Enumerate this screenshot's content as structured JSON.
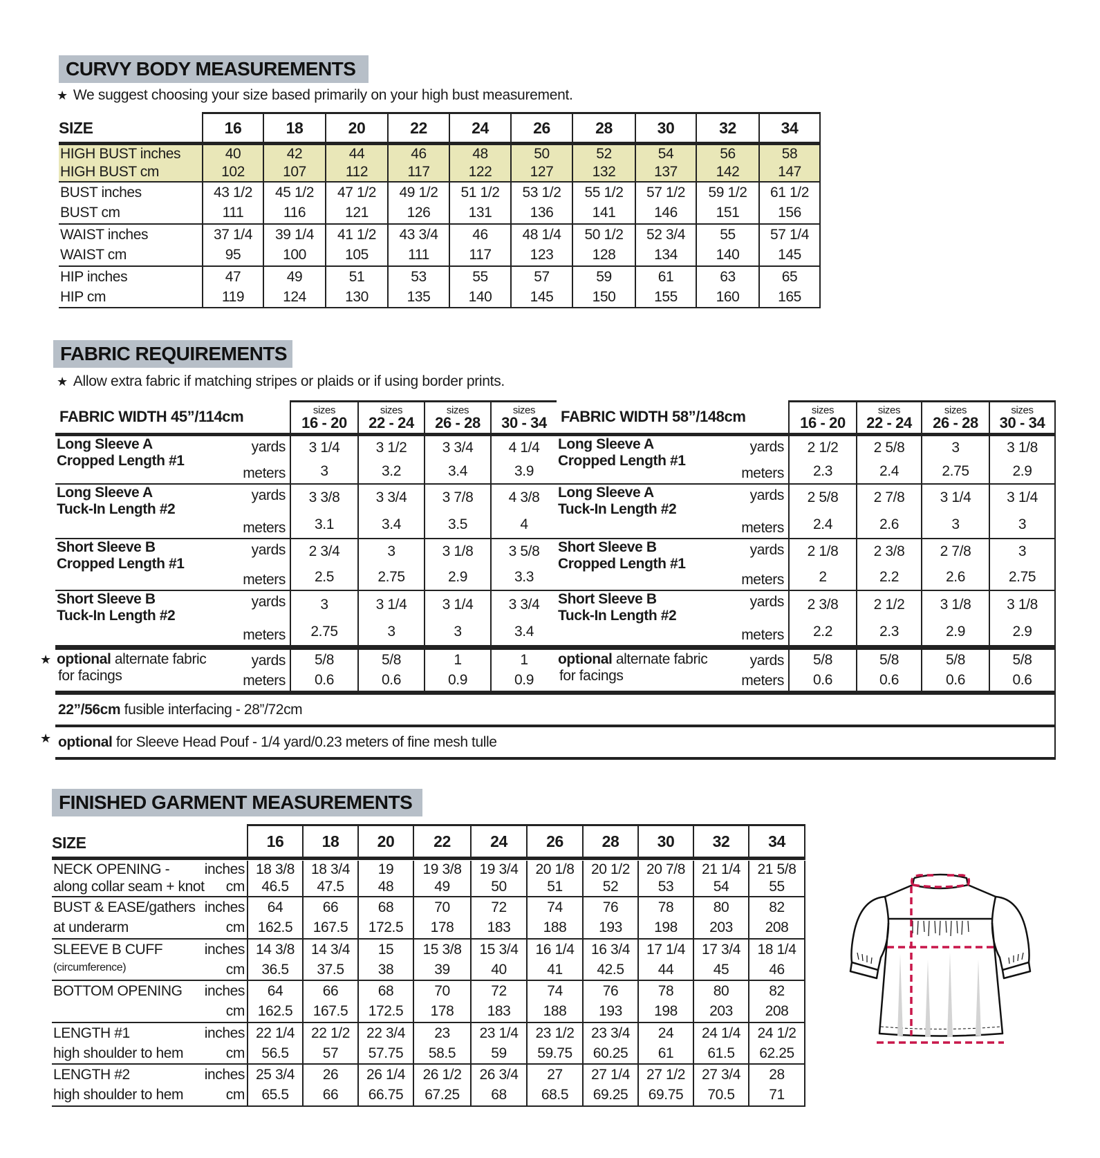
{
  "curvy": {
    "title": "CURVY BODY MEASUREMENTS",
    "note": "We suggest choosing your size based primarily on your high bust measurement.",
    "highlight_color": "#e9e7b8",
    "size_label": "SIZE",
    "sizes": [
      "16",
      "18",
      "20",
      "22",
      "24",
      "26",
      "28",
      "30",
      "32",
      "34"
    ],
    "rows": [
      {
        "labels": [
          "HIGH BUST inches",
          "HIGH BUST cm"
        ],
        "highlight": true,
        "values": [
          [
            "40",
            "102"
          ],
          [
            "42",
            "107"
          ],
          [
            "44",
            "112"
          ],
          [
            "46",
            "117"
          ],
          [
            "48",
            "122"
          ],
          [
            "50",
            "127"
          ],
          [
            "52",
            "132"
          ],
          [
            "54",
            "137"
          ],
          [
            "56",
            "142"
          ],
          [
            "58",
            "147"
          ]
        ]
      },
      {
        "labels": [
          "BUST inches",
          "BUST cm"
        ],
        "values": [
          [
            "43 1/2",
            "111"
          ],
          [
            "45 1/2",
            "116"
          ],
          [
            "47 1/2",
            "121"
          ],
          [
            "49 1/2",
            "126"
          ],
          [
            "51 1/2",
            "131"
          ],
          [
            "53 1/2",
            "136"
          ],
          [
            "55 1/2",
            "141"
          ],
          [
            "57 1/2",
            "146"
          ],
          [
            "59 1/2",
            "151"
          ],
          [
            "61 1/2",
            "156"
          ]
        ]
      },
      {
        "labels": [
          "WAIST inches",
          "WAIST cm"
        ],
        "values": [
          [
            "37 1/4",
            "95"
          ],
          [
            "39 1/4",
            "100"
          ],
          [
            "41 1/2",
            "105"
          ],
          [
            "43 3/4",
            "111"
          ],
          [
            "46",
            "117"
          ],
          [
            "48 1/4",
            "123"
          ],
          [
            "50 1/2",
            "128"
          ],
          [
            "52 3/4",
            "134"
          ],
          [
            "55",
            "140"
          ],
          [
            "57 1/4",
            "145"
          ]
        ]
      },
      {
        "labels": [
          "HIP inches",
          "HIP cm"
        ],
        "values": [
          [
            "47",
            "119"
          ],
          [
            "49",
            "124"
          ],
          [
            "51",
            "130"
          ],
          [
            "53",
            "135"
          ],
          [
            "55",
            "140"
          ],
          [
            "57",
            "145"
          ],
          [
            "59",
            "150"
          ],
          [
            "61",
            "155"
          ],
          [
            "63",
            "160"
          ],
          [
            "65",
            "165"
          ]
        ]
      }
    ]
  },
  "fabric": {
    "title": "FABRIC REQUIREMENTS",
    "note": "Allow extra fabric if matching stripes or plaids or if using border prints.",
    "left_heading": "FABRIC WIDTH 45”/114cm",
    "right_heading": "FABRIC WIDTH 58”/148cm",
    "groups": [
      {
        "top": "sizes",
        "range": "16 - 20"
      },
      {
        "top": "sizes",
        "range": "22 - 24"
      },
      {
        "top": "sizes",
        "range": "26 - 28"
      },
      {
        "top": "sizes",
        "range": "30 - 34"
      }
    ],
    "unit_yards": "yards",
    "unit_meters": "meters",
    "rows": [
      {
        "name": [
          "Long Sleeve A",
          "Cropped Length #1"
        ],
        "left": [
          [
            "3 1/4",
            "3"
          ],
          [
            "3 1/2",
            "3.2"
          ],
          [
            "3 3/4",
            "3.4"
          ],
          [
            "4 1/4",
            "3.9"
          ]
        ],
        "right": [
          [
            "2 1/2",
            "2.3"
          ],
          [
            "2 5/8",
            "2.4"
          ],
          [
            "3",
            "2.75"
          ],
          [
            "3 1/8",
            "2.9"
          ]
        ]
      },
      {
        "name": [
          "Long Sleeve A",
          "Tuck-In Length #2"
        ],
        "left": [
          [
            "3 3/8",
            "3.1"
          ],
          [
            "3 3/4",
            "3.4"
          ],
          [
            "3 7/8",
            "3.5"
          ],
          [
            "4 3/8",
            "4"
          ]
        ],
        "right": [
          [
            "2 5/8",
            "2.4"
          ],
          [
            "2 7/8",
            "2.6"
          ],
          [
            "3 1/4",
            "3"
          ],
          [
            "3 1/4",
            "3"
          ]
        ]
      },
      {
        "name": [
          "Short Sleeve B",
          "Cropped Length #1"
        ],
        "left": [
          [
            "2 3/4",
            "2.5"
          ],
          [
            "3",
            "2.75"
          ],
          [
            "3 1/8",
            "2.9"
          ],
          [
            "3 5/8",
            "3.3"
          ]
        ],
        "right": [
          [
            "2 1/8",
            "2"
          ],
          [
            "2 3/8",
            "2.2"
          ],
          [
            "2 7/8",
            "2.6"
          ],
          [
            "3",
            "2.75"
          ]
        ]
      },
      {
        "name": [
          "Short Sleeve B",
          "Tuck-In Length #2"
        ],
        "left": [
          [
            "3",
            "2.75"
          ],
          [
            "3 1/4",
            "3"
          ],
          [
            "3 1/4",
            "3"
          ],
          [
            "3 3/4",
            "3.4"
          ]
        ],
        "right": [
          [
            "2 3/8",
            "2.2"
          ],
          [
            "2 1/2",
            "2.3"
          ],
          [
            "3 1/8",
            "2.9"
          ],
          [
            "3 1/8",
            "2.9"
          ]
        ]
      }
    ],
    "optional_row": {
      "bold": "optional",
      "rest": " alternate fabric",
      "line2": "for facings",
      "left": [
        [
          "5/8",
          "0.6"
        ],
        [
          "5/8",
          "0.6"
        ],
        [
          "1",
          "0.9"
        ],
        [
          "1",
          "0.9"
        ]
      ],
      "right": [
        [
          "5/8",
          "0.6"
        ],
        [
          "5/8",
          "0.6"
        ],
        [
          "5/8",
          "0.6"
        ],
        [
          "5/8",
          "0.6"
        ]
      ]
    },
    "interfacing": {
      "bold": "22”/56cm",
      "rest": " fusible interfacing - 28”/72cm"
    },
    "pouf": {
      "bold": "optional",
      "rest": " for Sleeve Head Pouf - 1/4 yard/0.23 meters of fine mesh tulle"
    }
  },
  "finished": {
    "title": "FINISHED GARMENT MEASUREMENTS",
    "size_label": "SIZE",
    "sizes": [
      "16",
      "18",
      "20",
      "22",
      "24",
      "26",
      "28",
      "30",
      "32",
      "34"
    ],
    "rows": [
      {
        "labels": [
          "NECK OPENING -",
          "along collar seam + knot"
        ],
        "units": [
          "inches",
          "cm"
        ],
        "values": [
          [
            "18 3/8",
            "46.5"
          ],
          [
            "18 3/4",
            "47.5"
          ],
          [
            "19",
            "48"
          ],
          [
            "19 3/8",
            "49"
          ],
          [
            "19 3/4",
            "50"
          ],
          [
            "20 1/8",
            "51"
          ],
          [
            "20 1/2",
            "52"
          ],
          [
            "20 7/8",
            "53"
          ],
          [
            "21 1/4",
            "54"
          ],
          [
            "21 5/8",
            "55"
          ]
        ]
      },
      {
        "labels": [
          "BUST & EASE/gathers",
          "at underarm"
        ],
        "units": [
          "inches",
          "cm"
        ],
        "values": [
          [
            "64",
            "162.5"
          ],
          [
            "66",
            "167.5"
          ],
          [
            "68",
            "172.5"
          ],
          [
            "70",
            "178"
          ],
          [
            "72",
            "183"
          ],
          [
            "74",
            "188"
          ],
          [
            "76",
            "193"
          ],
          [
            "78",
            "198"
          ],
          [
            "80",
            "203"
          ],
          [
            "82",
            "208"
          ]
        ]
      },
      {
        "labels": [
          "SLEEVE B CUFF",
          "(circumference)"
        ],
        "units": [
          "inches",
          "cm"
        ],
        "values": [
          [
            "14 3/8",
            "36.5"
          ],
          [
            "14 3/4",
            "37.5"
          ],
          [
            "15",
            "38"
          ],
          [
            "15 3/8",
            "39"
          ],
          [
            "15 3/4",
            "40"
          ],
          [
            "16 1/4",
            "41"
          ],
          [
            "16 3/4",
            "42.5"
          ],
          [
            "17 1/4",
            "44"
          ],
          [
            "17 3/4",
            "45"
          ],
          [
            "18 1/4",
            "46"
          ]
        ]
      },
      {
        "labels": [
          "BOTTOM OPENING",
          ""
        ],
        "units": [
          "inches",
          "cm"
        ],
        "values": [
          [
            "64",
            "162.5"
          ],
          [
            "66",
            "167.5"
          ],
          [
            "68",
            "172.5"
          ],
          [
            "70",
            "178"
          ],
          [
            "72",
            "183"
          ],
          [
            "74",
            "188"
          ],
          [
            "76",
            "193"
          ],
          [
            "78",
            "198"
          ],
          [
            "80",
            "203"
          ],
          [
            "82",
            "208"
          ]
        ]
      },
      {
        "labels": [
          "LENGTH #1",
          "high shoulder to hem"
        ],
        "units": [
          "inches",
          "cm"
        ],
        "values": [
          [
            "22 1/4",
            "56.5"
          ],
          [
            "22 1/2",
            "57"
          ],
          [
            "22 3/4",
            "57.75"
          ],
          [
            "23",
            "58.5"
          ],
          [
            "23 1/4",
            "59"
          ],
          [
            "23 1/2",
            "59.75"
          ],
          [
            "23 3/4",
            "60.25"
          ],
          [
            "24",
            "61"
          ],
          [
            "24 1/4",
            "61.5"
          ],
          [
            "24 1/2",
            "62.25"
          ]
        ]
      },
      {
        "labels": [
          "LENGTH #2",
          "high shoulder to hem"
        ],
        "units": [
          "inches",
          "cm"
        ],
        "values": [
          [
            "25 3/4",
            "65.5"
          ],
          [
            "26",
            "66"
          ],
          [
            "26 1/4",
            "66.75"
          ],
          [
            "26 1/2",
            "67.25"
          ],
          [
            "26 3/4",
            "68"
          ],
          [
            "27",
            "68.5"
          ],
          [
            "27 1/4",
            "69.25"
          ],
          [
            "27 1/2",
            "69.75"
          ],
          [
            "27 3/4",
            "70.5"
          ],
          [
            "28",
            "71"
          ]
        ]
      }
    ],
    "illustration": {
      "icon": "blouse-measurement-diagram-icon",
      "measure_color": "#c8174a"
    }
  }
}
